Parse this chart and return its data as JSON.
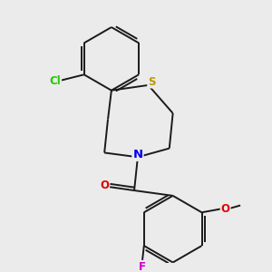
{
  "background_color": "#ebebeb",
  "bond_color": "#1a1a1a",
  "bond_width": 1.4,
  "atom_colors": {
    "Cl": "#22cc00",
    "S": "#bb9900",
    "N": "#0000ee",
    "O": "#dd0000",
    "F": "#cc00cc"
  },
  "atom_fontsizes": {
    "Cl": 8.5,
    "S": 8.5,
    "N": 9.5,
    "O": 8.5,
    "F": 8.5
  },
  "figsize": [
    3.0,
    3.0
  ],
  "dpi": 100,
  "xlim": [
    0.0,
    3.0
  ],
  "ylim": [
    0.0,
    3.0
  ]
}
